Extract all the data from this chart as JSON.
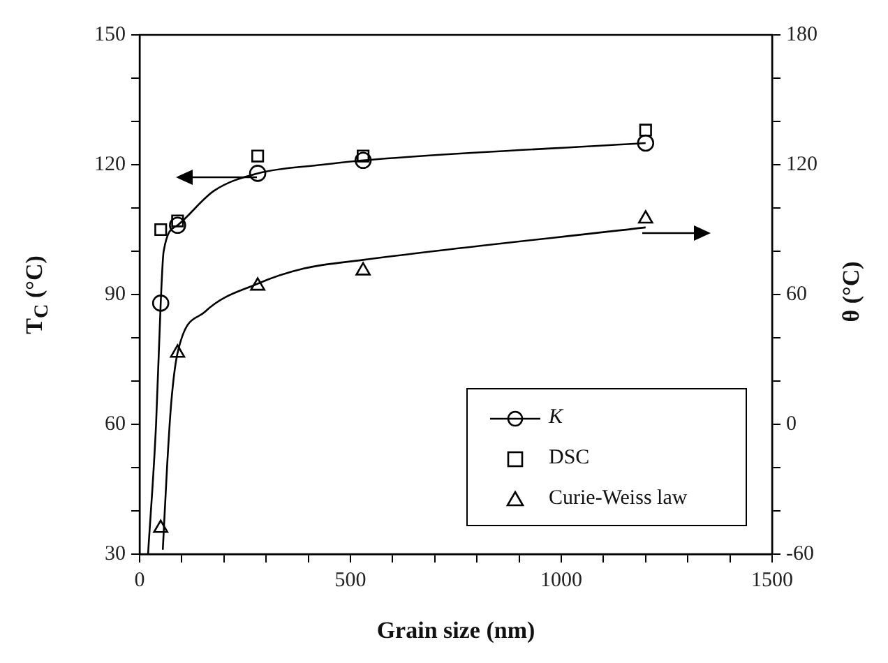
{
  "chart_data": {
    "type": "scatter",
    "xlabel": "Grain size (nm)",
    "ylabel": "T$_{C}$ (°C)",
    "y2label": "θ (°C)",
    "x": [
      50,
      90,
      280,
      530,
      1200
    ],
    "series": [
      {
        "name": "K",
        "marker": "circle",
        "color": "#000000",
        "values": [
          88,
          106,
          118,
          121,
          125
        ]
      },
      {
        "name": "DSC",
        "marker": "square",
        "color": "#000000",
        "values": [
          105,
          107,
          122,
          122,
          128
        ]
      },
      {
        "name": "Curie-Weiss law",
        "marker": "triangle",
        "axis": "y2",
        "color": "#000000",
        "values": [
          -48,
          33,
          64,
          71,
          95
        ]
      },
      {
        "type": "line",
        "marker": "none",
        "color": "#000000",
        "x": [
          20,
          39,
          50,
          57,
          90,
          177,
          280,
          433,
          530,
          1200
        ],
        "values": [
          30,
          60,
          88,
          100,
          106,
          114,
          118,
          120,
          121,
          125
        ]
      },
      {
        "type": "line",
        "marker": "none",
        "axis": "y2",
        "color": "#000000",
        "x": [
          55,
          65,
          75,
          90,
          155,
          280,
          389,
          530,
          1200
        ],
        "values": [
          -58,
          -20,
          10,
          33,
          52,
          65,
          72,
          76,
          91
        ]
      }
    ],
    "xlim": [
      0,
      1500
    ],
    "xticks": [
      0,
      {
        "value": 100,
        "label": null
      },
      {
        "value": 200,
        "label": null
      },
      {
        "value": 300,
        "label": null
      },
      {
        "value": 400,
        "label": null
      },
      500,
      {
        "value": 600,
        "label": null
      },
      {
        "value": 700,
        "label": null
      },
      {
        "value": 800,
        "label": null
      },
      {
        "value": 900,
        "label": null
      },
      1000,
      {
        "value": 1100,
        "label": null
      },
      {
        "value": 1200,
        "label": null
      },
      {
        "value": 1300,
        "label": null
      },
      {
        "value": 1400,
        "label": null
      },
      1500
    ],
    "ylim": [
      30,
      150
    ],
    "yticks": [
      30,
      {
        "value": 40,
        "label": null
      },
      {
        "value": 50,
        "label": null
      },
      60,
      {
        "value": 70,
        "label": null
      },
      {
        "value": 80,
        "label": null
      },
      90,
      {
        "value": 100,
        "label": null
      },
      {
        "value": 110,
        "label": null
      },
      120,
      {
        "value": 130,
        "label": null
      },
      {
        "value": 140,
        "label": null
      },
      150
    ],
    "y2lim": [
      -60,
      180
    ],
    "y2ticks": [
      -60,
      {
        "value": -40,
        "label": null
      },
      {
        "value": -20,
        "label": null
      },
      0,
      {
        "value": 20,
        "label": null
      },
      {
        "value": 40,
        "label": null
      },
      60,
      {
        "value": 80,
        "label": null
      },
      {
        "value": 100,
        "label": null
      },
      120,
      {
        "value": 140,
        "label": null
      },
      {
        "value": 160,
        "label": null
      },
      180
    ],
    "legend": "bottom right"
  }
}
